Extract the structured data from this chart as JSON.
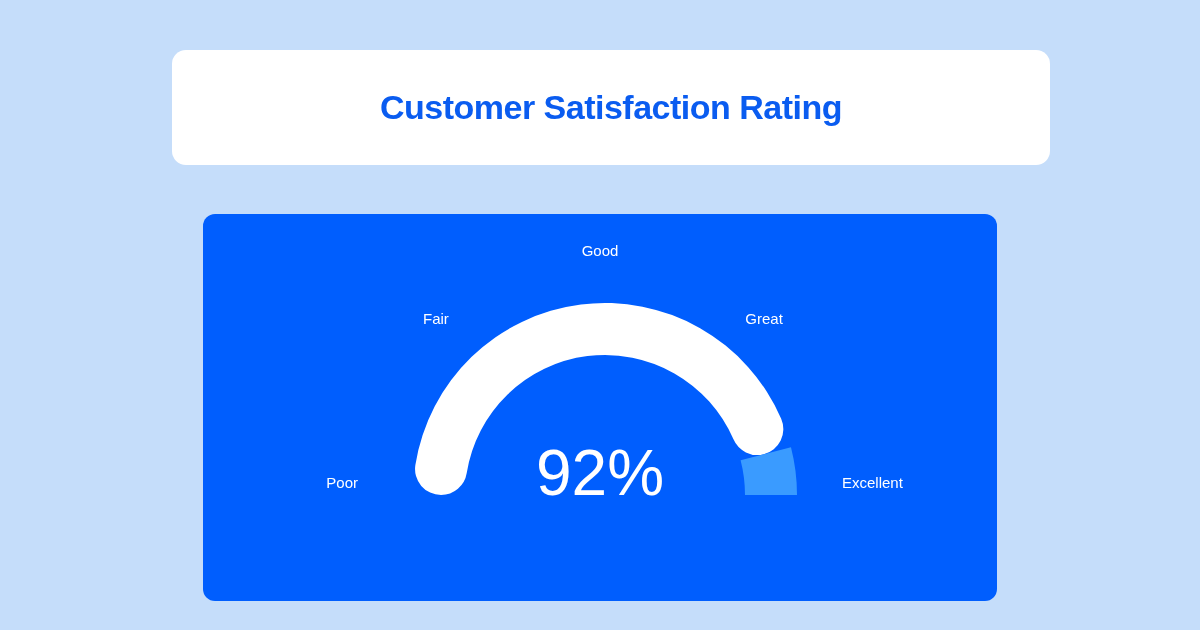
{
  "chart_data": {
    "type": "donut",
    "title": "Customer Satisfaction Rating",
    "categories": [
      null,
      null
    ],
    "values": [
      92,
      8
    ],
    "colors": [
      "#ffffff",
      "#3a9bff"
    ],
    "value_labels": [
      "92%",
      null
    ],
    "annotations": [
      "Poor",
      "Fair",
      "Good",
      "Great",
      "Excellent"
    ]
  }
}
